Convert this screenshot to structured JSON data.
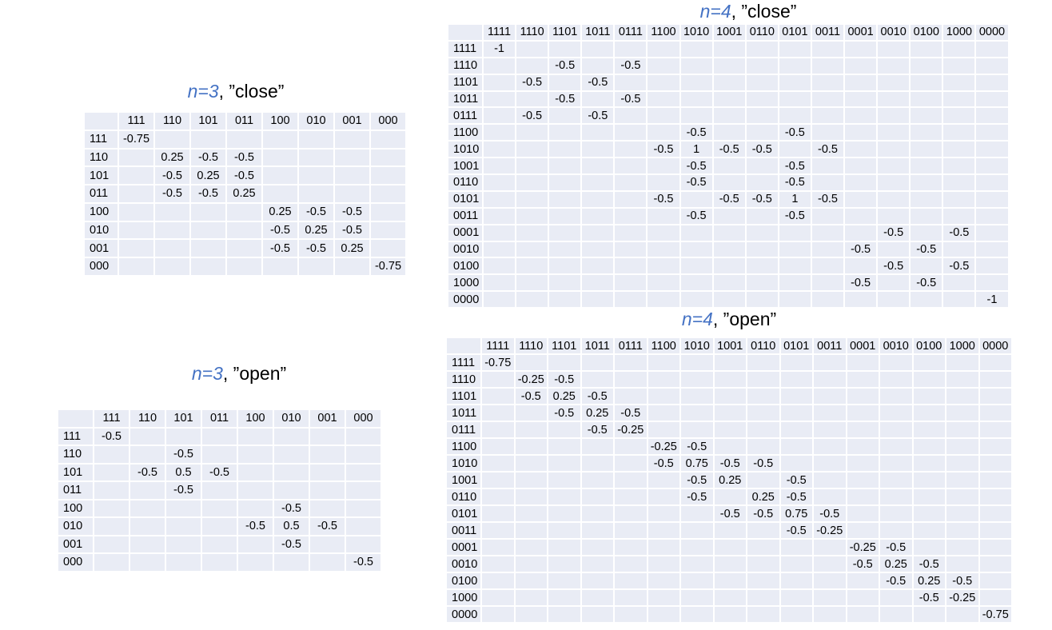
{
  "tables": [
    {
      "id": "n3-close",
      "title": {
        "n": "n=3",
        "rest": ", ”close”"
      },
      "columns": [
        "111",
        "110",
        "101",
        "011",
        "100",
        "010",
        "001",
        "000"
      ],
      "rows": [
        {
          "label": "111",
          "cells": [
            "-0.75",
            "",
            "",
            "",
            "",
            "",
            "",
            ""
          ]
        },
        {
          "label": "110",
          "cells": [
            "",
            "0.25",
            "-0.5",
            "-0.5",
            "",
            "",
            "",
            ""
          ]
        },
        {
          "label": "101",
          "cells": [
            "",
            "-0.5",
            "0.25",
            "-0.5",
            "",
            "",
            "",
            ""
          ]
        },
        {
          "label": "011",
          "cells": [
            "",
            "-0.5",
            "-0.5",
            "0.25",
            "",
            "",
            "",
            ""
          ]
        },
        {
          "label": "100",
          "cells": [
            "",
            "",
            "",
            "",
            "0.25",
            "-0.5",
            "-0.5",
            ""
          ]
        },
        {
          "label": "010",
          "cells": [
            "",
            "",
            "",
            "",
            "-0.5",
            "0.25",
            "-0.5",
            ""
          ]
        },
        {
          "label": "001",
          "cells": [
            "",
            "",
            "",
            "",
            "-0.5",
            "-0.5",
            "0.25",
            ""
          ]
        },
        {
          "label": "000",
          "cells": [
            "",
            "",
            "",
            "",
            "",
            "",
            "",
            "-0.75"
          ]
        }
      ]
    },
    {
      "id": "n3-open",
      "title": {
        "n": "n=3",
        "rest": ", ”open”"
      },
      "columns": [
        "111",
        "110",
        "101",
        "011",
        "100",
        "010",
        "001",
        "000"
      ],
      "rows": [
        {
          "label": "111",
          "cells": [
            "-0.5",
            "",
            "",
            "",
            "",
            "",
            "",
            ""
          ]
        },
        {
          "label": "110",
          "cells": [
            "",
            "",
            "-0.5",
            "",
            "",
            "",
            "",
            ""
          ]
        },
        {
          "label": "101",
          "cells": [
            "",
            "-0.5",
            "0.5",
            "-0.5",
            "",
            "",
            "",
            ""
          ]
        },
        {
          "label": "011",
          "cells": [
            "",
            "",
            "-0.5",
            "",
            "",
            "",
            "",
            ""
          ]
        },
        {
          "label": "100",
          "cells": [
            "",
            "",
            "",
            "",
            "",
            "-0.5",
            "",
            ""
          ]
        },
        {
          "label": "010",
          "cells": [
            "",
            "",
            "",
            "",
            "-0.5",
            "0.5",
            "-0.5",
            ""
          ]
        },
        {
          "label": "001",
          "cells": [
            "",
            "",
            "",
            "",
            "",
            "-0.5",
            "",
            ""
          ]
        },
        {
          "label": "000",
          "cells": [
            "",
            "",
            "",
            "",
            "",
            "",
            "",
            "-0.5"
          ]
        }
      ]
    },
    {
      "id": "n4-close",
      "title": {
        "n": "n=4",
        "rest": ", ”close”"
      },
      "columns": [
        "1111",
        "1110",
        "1101",
        "1011",
        "0111",
        "1100",
        "1010",
        "1001",
        "0110",
        "0101",
        "0011",
        "0001",
        "0010",
        "0100",
        "1000",
        "0000"
      ],
      "rows": [
        {
          "label": "1111",
          "cells": [
            "-1",
            "",
            "",
            "",
            "",
            "",
            "",
            "",
            "",
            "",
            "",
            "",
            "",
            "",
            "",
            ""
          ]
        },
        {
          "label": "1110",
          "cells": [
            "",
            "",
            "-0.5",
            "",
            "-0.5",
            "",
            "",
            "",
            "",
            "",
            "",
            "",
            "",
            "",
            "",
            ""
          ]
        },
        {
          "label": "1101",
          "cells": [
            "",
            "-0.5",
            "",
            "-0.5",
            "",
            "",
            "",
            "",
            "",
            "",
            "",
            "",
            "",
            "",
            "",
            ""
          ]
        },
        {
          "label": "1011",
          "cells": [
            "",
            "",
            "-0.5",
            "",
            "-0.5",
            "",
            "",
            "",
            "",
            "",
            "",
            "",
            "",
            "",
            "",
            ""
          ]
        },
        {
          "label": "0111",
          "cells": [
            "",
            "-0.5",
            "",
            "-0.5",
            "",
            "",
            "",
            "",
            "",
            "",
            "",
            "",
            "",
            "",
            "",
            ""
          ]
        },
        {
          "label": "1100",
          "cells": [
            "",
            "",
            "",
            "",
            "",
            "",
            "-0.5",
            "",
            "",
            "-0.5",
            "",
            "",
            "",
            "",
            "",
            ""
          ]
        },
        {
          "label": "1010",
          "cells": [
            "",
            "",
            "",
            "",
            "",
            "-0.5",
            "1",
            "-0.5",
            "-0.5",
            "",
            "-0.5",
            "",
            "",
            "",
            "",
            ""
          ]
        },
        {
          "label": "1001",
          "cells": [
            "",
            "",
            "",
            "",
            "",
            "",
            "-0.5",
            "",
            "",
            "-0.5",
            "",
            "",
            "",
            "",
            "",
            ""
          ]
        },
        {
          "label": "0110",
          "cells": [
            "",
            "",
            "",
            "",
            "",
            "",
            "-0.5",
            "",
            "",
            "-0.5",
            "",
            "",
            "",
            "",
            "",
            ""
          ]
        },
        {
          "label": "0101",
          "cells": [
            "",
            "",
            "",
            "",
            "",
            "-0.5",
            "",
            "-0.5",
            "-0.5",
            "1",
            "-0.5",
            "",
            "",
            "",
            "",
            ""
          ]
        },
        {
          "label": "0011",
          "cells": [
            "",
            "",
            "",
            "",
            "",
            "",
            "-0.5",
            "",
            "",
            "-0.5",
            "",
            "",
            "",
            "",
            "",
            ""
          ]
        },
        {
          "label": "0001",
          "cells": [
            "",
            "",
            "",
            "",
            "",
            "",
            "",
            "",
            "",
            "",
            "",
            "",
            "-0.5",
            "",
            "-0.5",
            ""
          ]
        },
        {
          "label": "0010",
          "cells": [
            "",
            "",
            "",
            "",
            "",
            "",
            "",
            "",
            "",
            "",
            "",
            "-0.5",
            "",
            "-0.5",
            "",
            ""
          ]
        },
        {
          "label": "0100",
          "cells": [
            "",
            "",
            "",
            "",
            "",
            "",
            "",
            "",
            "",
            "",
            "",
            "",
            "-0.5",
            "",
            "-0.5",
            ""
          ]
        },
        {
          "label": "1000",
          "cells": [
            "",
            "",
            "",
            "",
            "",
            "",
            "",
            "",
            "",
            "",
            "",
            "-0.5",
            "",
            "-0.5",
            "",
            ""
          ]
        },
        {
          "label": "0000",
          "cells": [
            "",
            "",
            "",
            "",
            "",
            "",
            "",
            "",
            "",
            "",
            "",
            "",
            "",
            "",
            "",
            "-1"
          ]
        }
      ]
    },
    {
      "id": "n4-open",
      "title": {
        "n": "n=4",
        "rest": ", ”open”"
      },
      "columns": [
        "1111",
        "1110",
        "1101",
        "1011",
        "0111",
        "1100",
        "1010",
        "1001",
        "0110",
        "0101",
        "0011",
        "0001",
        "0010",
        "0100",
        "1000",
        "0000"
      ],
      "rows": [
        {
          "label": "1111",
          "cells": [
            "-0.75",
            "",
            "",
            "",
            "",
            "",
            "",
            "",
            "",
            "",
            "",
            "",
            "",
            "",
            "",
            ""
          ]
        },
        {
          "label": "1110",
          "cells": [
            "",
            "-0.25",
            "-0.5",
            "",
            "",
            "",
            "",
            "",
            "",
            "",
            "",
            "",
            "",
            "",
            "",
            ""
          ]
        },
        {
          "label": "1101",
          "cells": [
            "",
            "-0.5",
            "0.25",
            "-0.5",
            "",
            "",
            "",
            "",
            "",
            "",
            "",
            "",
            "",
            "",
            "",
            ""
          ]
        },
        {
          "label": "1011",
          "cells": [
            "",
            "",
            "-0.5",
            "0.25",
            "-0.5",
            "",
            "",
            "",
            "",
            "",
            "",
            "",
            "",
            "",
            "",
            ""
          ]
        },
        {
          "label": "0111",
          "cells": [
            "",
            "",
            "",
            "-0.5",
            "-0.25",
            "",
            "",
            "",
            "",
            "",
            "",
            "",
            "",
            "",
            "",
            ""
          ]
        },
        {
          "label": "1100",
          "cells": [
            "",
            "",
            "",
            "",
            "",
            "-0.25",
            "-0.5",
            "",
            "",
            "",
            "",
            "",
            "",
            "",
            "",
            ""
          ]
        },
        {
          "label": "1010",
          "cells": [
            "",
            "",
            "",
            "",
            "",
            "-0.5",
            "0.75",
            "-0.5",
            "-0.5",
            "",
            "",
            "",
            "",
            "",
            "",
            ""
          ]
        },
        {
          "label": "1001",
          "cells": [
            "",
            "",
            "",
            "",
            "",
            "",
            "-0.5",
            "0.25",
            "",
            "-0.5",
            "",
            "",
            "",
            "",
            "",
            ""
          ]
        },
        {
          "label": "0110",
          "cells": [
            "",
            "",
            "",
            "",
            "",
            "",
            "-0.5",
            "",
            "0.25",
            "-0.5",
            "",
            "",
            "",
            "",
            "",
            ""
          ]
        },
        {
          "label": "0101",
          "cells": [
            "",
            "",
            "",
            "",
            "",
            "",
            "",
            "-0.5",
            "-0.5",
            "0.75",
            "-0.5",
            "",
            "",
            "",
            "",
            ""
          ]
        },
        {
          "label": "0011",
          "cells": [
            "",
            "",
            "",
            "",
            "",
            "",
            "",
            "",
            "",
            "-0.5",
            "-0.25",
            "",
            "",
            "",
            "",
            ""
          ]
        },
        {
          "label": "0001",
          "cells": [
            "",
            "",
            "",
            "",
            "",
            "",
            "",
            "",
            "",
            "",
            "",
            "-0.25",
            "-0.5",
            "",
            "",
            ""
          ]
        },
        {
          "label": "0010",
          "cells": [
            "",
            "",
            "",
            "",
            "",
            "",
            "",
            "",
            "",
            "",
            "",
            "-0.5",
            "0.25",
            "-0.5",
            "",
            ""
          ]
        },
        {
          "label": "0100",
          "cells": [
            "",
            "",
            "",
            "",
            "",
            "",
            "",
            "",
            "",
            "",
            "",
            "",
            "-0.5",
            "0.25",
            "-0.5",
            ""
          ]
        },
        {
          "label": "1000",
          "cells": [
            "",
            "",
            "",
            "",
            "",
            "",
            "",
            "",
            "",
            "",
            "",
            "",
            "",
            "-0.5",
            "-0.25",
            ""
          ]
        },
        {
          "label": "0000",
          "cells": [
            "",
            "",
            "",
            "",
            "",
            "",
            "",
            "",
            "",
            "",
            "",
            "",
            "",
            "",
            "",
            "-0.75"
          ]
        }
      ]
    }
  ]
}
